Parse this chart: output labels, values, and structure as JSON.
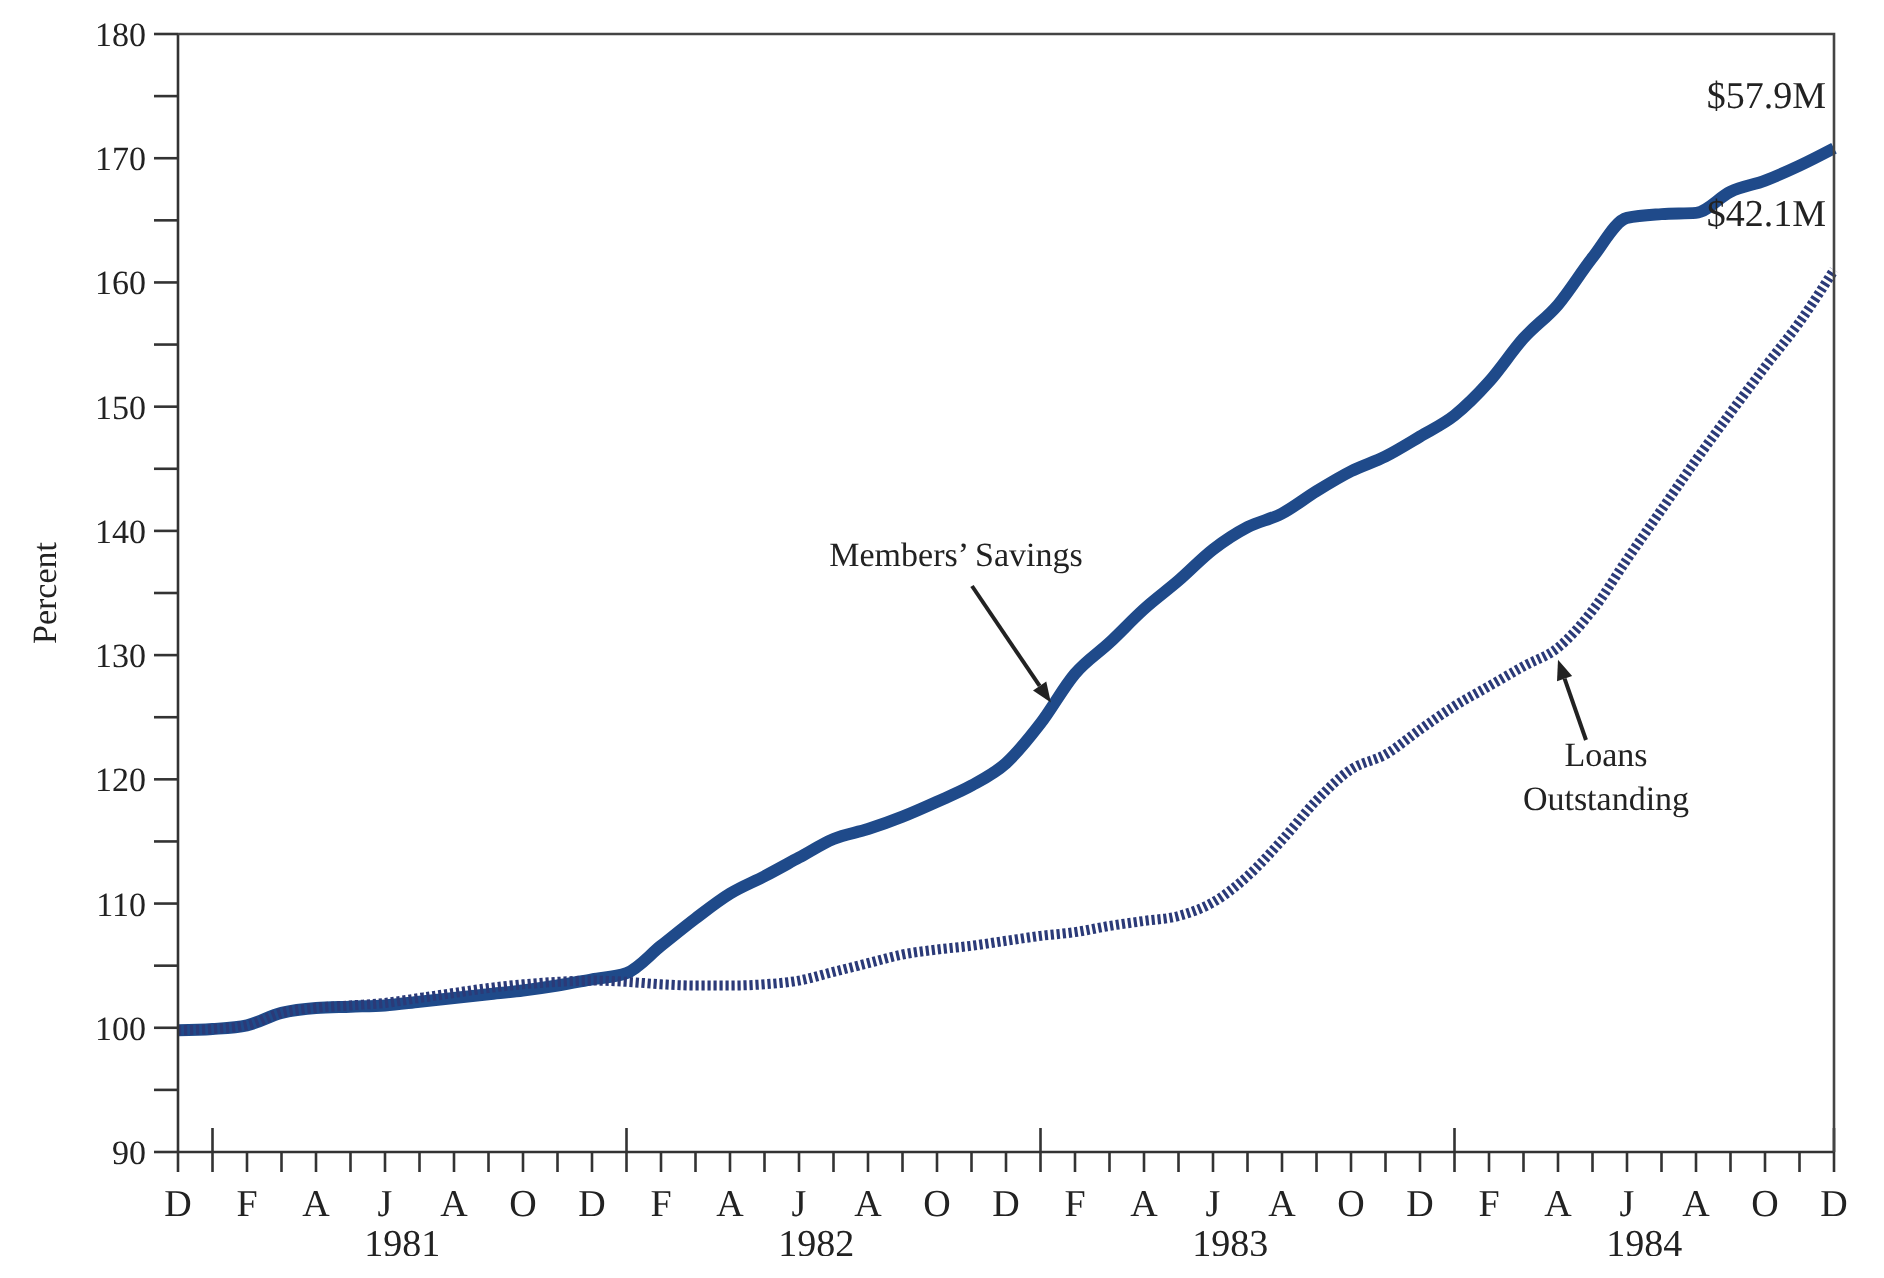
{
  "chart_data": {
    "type": "line",
    "ylabel": "Percent",
    "categories": [
      "D",
      null,
      "F",
      null,
      "A",
      null,
      "J",
      null,
      "A",
      null,
      "O",
      null,
      "D",
      null,
      "F",
      null,
      "A",
      null,
      "J",
      null,
      "A",
      null,
      "O",
      null,
      "D",
      null,
      "F",
      null,
      "A",
      null,
      "J",
      null,
      "A",
      null,
      "O",
      null,
      "D",
      null,
      "F",
      null,
      "A",
      null,
      "J",
      null,
      "A",
      null,
      "O",
      null,
      "D"
    ],
    "series": [
      {
        "name": "Members’ Savings",
        "color": "#1f4a8a",
        "line_style": "solid",
        "values": [
          99.8,
          99.9,
          100.2,
          101.2,
          101.6,
          101.7,
          101.8,
          102.1,
          102.4,
          102.7,
          103,
          103.4,
          103.9,
          104.4,
          106.6,
          108.8,
          110.8,
          112.2,
          113.7,
          115.2,
          116,
          117,
          118.2,
          119.5,
          121.3,
          124.5,
          128.5,
          131,
          133.7,
          136,
          138.5,
          140.3,
          141.4,
          143.2,
          144.8,
          146,
          147.6,
          149.3,
          152,
          155.5,
          158.2,
          162,
          165.2,
          165.5,
          165.6,
          167.3,
          168.2,
          169.4,
          170.8
        ]
      },
      {
        "name": "Loans Outstanding",
        "color": "#2b3a78",
        "line_style": "dotted",
        "values": [
          99.8,
          99.9,
          100.2,
          101.2,
          101.6,
          101.8,
          102,
          102.4,
          102.8,
          103.2,
          103.5,
          103.7,
          103.8,
          103.7,
          103.5,
          103.4,
          103.4,
          103.5,
          103.8,
          104.5,
          105.2,
          105.9,
          106.3,
          106.6,
          107,
          107.4,
          107.7,
          108.2,
          108.6,
          109,
          110.1,
          112.2,
          115.1,
          118.3,
          120.8,
          122,
          124,
          125.9,
          127.5,
          129.1,
          130.6,
          133.6,
          137.7,
          141.7,
          145.7,
          149.5,
          153.2,
          156.8,
          161
        ]
      }
    ],
    "ylim": [
      90,
      180
    ],
    "yticks": [
      90,
      {
        "value": 95,
        "label": null
      },
      100,
      {
        "value": 105,
        "label": null
      },
      110,
      {
        "value": 115,
        "label": null
      },
      120,
      {
        "value": 125,
        "label": null
      },
      130,
      {
        "value": 135,
        "label": null
      },
      140,
      {
        "value": 145,
        "label": null
      },
      150,
      {
        "value": 155,
        "label": null
      },
      160,
      {
        "value": 165,
        "label": null
      },
      170,
      {
        "value": 175,
        "label": null
      },
      180
    ],
    "annotations": [
      "$57.9M",
      "$42.1M",
      "1981",
      "1982",
      "1983",
      "1984"
    ],
    "grid": false,
    "legend": false,
    "marker": "none"
  }
}
